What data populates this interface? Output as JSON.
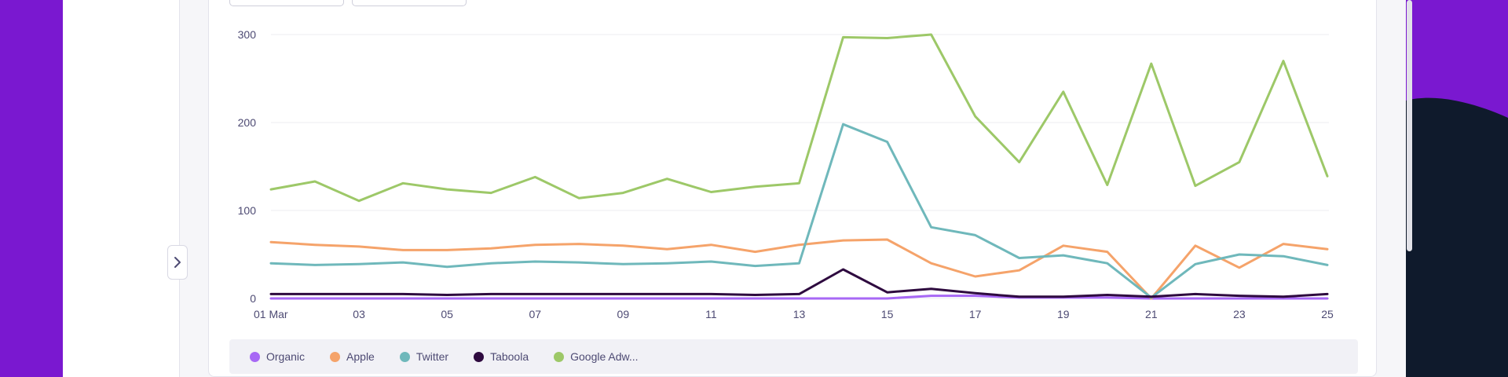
{
  "chart_data": {
    "type": "line",
    "x": [
      "01 Mar",
      "02",
      "03",
      "04",
      "05",
      "06",
      "07",
      "08",
      "09",
      "10",
      "11",
      "12",
      "13",
      "14",
      "15",
      "16",
      "17",
      "18",
      "19",
      "20",
      "21",
      "22",
      "23",
      "24",
      "25"
    ],
    "xtick_labels": [
      "01 Mar",
      "03",
      "05",
      "07",
      "09",
      "11",
      "13",
      "15",
      "17",
      "19",
      "21",
      "23",
      "25"
    ],
    "ylim": [
      0,
      300
    ],
    "yticks": [
      "0",
      "100",
      "200",
      "300"
    ],
    "grid": true,
    "legend_position": "bottom",
    "series": [
      {
        "name": "Organic",
        "color": "#a768f5",
        "values": [
          0,
          0,
          0,
          0,
          0,
          0,
          0,
          0,
          0,
          0,
          0,
          0,
          0,
          0,
          0,
          3,
          3,
          1,
          1,
          1,
          0,
          0,
          0,
          0,
          0
        ]
      },
      {
        "name": "Apple",
        "color": "#f5a36a",
        "values": [
          64,
          61,
          59,
          55,
          55,
          57,
          61,
          62,
          60,
          56,
          61,
          53,
          61,
          66,
          67,
          40,
          25,
          32,
          60,
          53,
          0,
          60,
          35,
          62,
          56
        ]
      },
      {
        "name": "Twitter",
        "color": "#6fb8bb",
        "values": [
          40,
          38,
          39,
          41,
          36,
          40,
          42,
          41,
          39,
          40,
          42,
          37,
          40,
          198,
          178,
          81,
          72,
          46,
          49,
          40,
          1,
          39,
          50,
          48,
          38
        ]
      },
      {
        "name": "Taboola",
        "color": "#2e0a3f",
        "values": [
          5,
          5,
          5,
          5,
          4,
          5,
          5,
          5,
          5,
          5,
          5,
          4,
          5,
          33,
          7,
          11,
          6,
          2,
          2,
          4,
          2,
          5,
          3,
          2,
          5
        ]
      },
      {
        "name": "Google Adw...",
        "color": "#9dc868",
        "values": [
          124,
          133,
          111,
          131,
          124,
          120,
          138,
          114,
          120,
          136,
          121,
          127,
          131,
          297,
          296,
          300,
          207,
          155,
          235,
          129,
          267,
          128,
          155,
          270,
          139
        ]
      }
    ]
  }
}
